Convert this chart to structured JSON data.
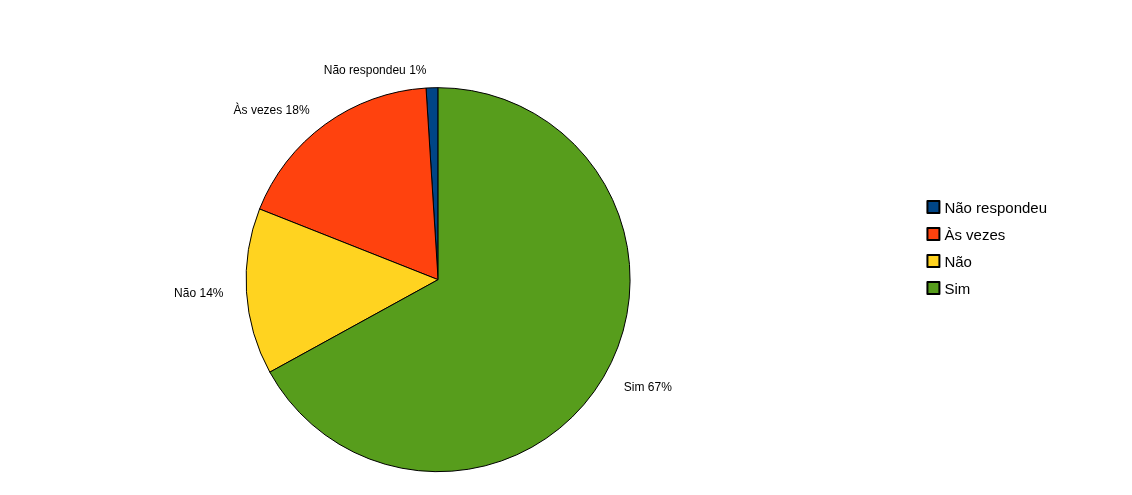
{
  "chart_data": {
    "type": "pie",
    "categories": [
      "Não respondeu",
      "Às vezes",
      "Não",
      "Sim"
    ],
    "values": [
      1,
      18,
      14,
      67
    ],
    "value_labels": [
      "1%",
      "18%",
      "14%",
      "67%"
    ],
    "colors": [
      "#004586",
      "#ff420e",
      "#ffd320",
      "#579d1c"
    ],
    "legend": "right"
  }
}
